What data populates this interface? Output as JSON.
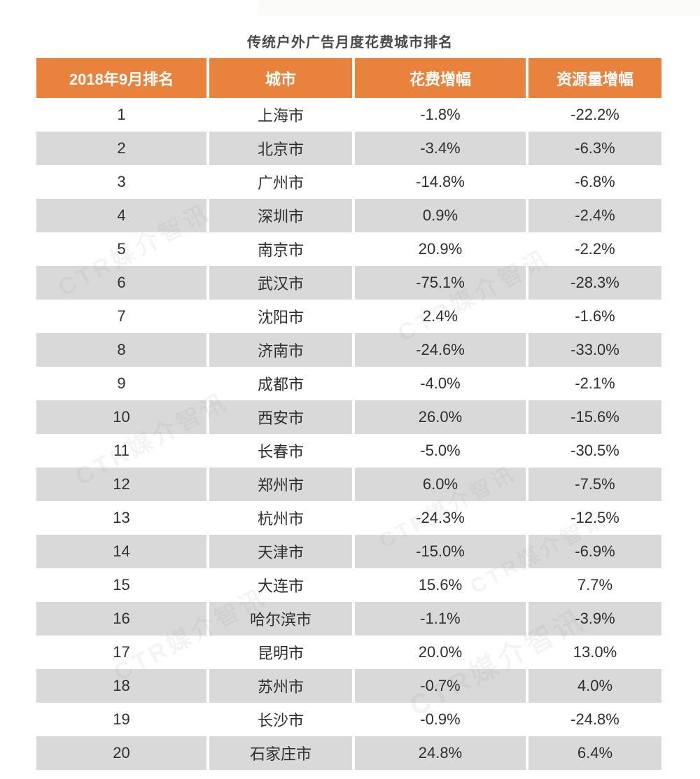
{
  "page": {
    "title": "传统户外广告月度花费城市排名"
  },
  "watermark": {
    "text": "CTR媒介智讯"
  },
  "colors": {
    "header_bg": "#E8823C",
    "header_text": "#FFFFFF",
    "alt_row_bg": "#D9D9D9",
    "row_bg": "#FFFFFF",
    "body_text": "#2F2F2F",
    "title_text": "#4A4A4A"
  },
  "table": {
    "headers": [
      "2018年9月排名",
      "城市",
      "花费增幅",
      "资源量增幅"
    ],
    "rows": [
      {
        "rank": "1",
        "city": "上海市",
        "spend_change": "-1.8%",
        "resource_change": "-22.2%"
      },
      {
        "rank": "2",
        "city": "北京市",
        "spend_change": "-3.4%",
        "resource_change": "-6.3%"
      },
      {
        "rank": "3",
        "city": "广州市",
        "spend_change": "-14.8%",
        "resource_change": "-6.8%"
      },
      {
        "rank": "4",
        "city": "深圳市",
        "spend_change": "0.9%",
        "resource_change": "-2.4%"
      },
      {
        "rank": "5",
        "city": "南京市",
        "spend_change": "20.9%",
        "resource_change": "-2.2%"
      },
      {
        "rank": "6",
        "city": "武汉市",
        "spend_change": "-75.1%",
        "resource_change": "-28.3%"
      },
      {
        "rank": "7",
        "city": "沈阳市",
        "spend_change": "2.4%",
        "resource_change": "-1.6%"
      },
      {
        "rank": "8",
        "city": "济南市",
        "spend_change": "-24.6%",
        "resource_change": "-33.0%"
      },
      {
        "rank": "9",
        "city": "成都市",
        "spend_change": "-4.0%",
        "resource_change": "-2.1%"
      },
      {
        "rank": "10",
        "city": "西安市",
        "spend_change": "26.0%",
        "resource_change": "-15.6%"
      },
      {
        "rank": "11",
        "city": "长春市",
        "spend_change": "-5.0%",
        "resource_change": "-30.5%"
      },
      {
        "rank": "12",
        "city": "郑州市",
        "spend_change": "6.0%",
        "resource_change": "-7.5%"
      },
      {
        "rank": "13",
        "city": "杭州市",
        "spend_change": "-24.3%",
        "resource_change": "-12.5%"
      },
      {
        "rank": "14",
        "city": "天津市",
        "spend_change": "-15.0%",
        "resource_change": "-6.9%"
      },
      {
        "rank": "15",
        "city": "大连市",
        "spend_change": "15.6%",
        "resource_change": "7.7%"
      },
      {
        "rank": "16",
        "city": "哈尔滨市",
        "spend_change": "-1.1%",
        "resource_change": "-3.9%"
      },
      {
        "rank": "17",
        "city": "昆明市",
        "spend_change": "20.0%",
        "resource_change": "13.0%"
      },
      {
        "rank": "18",
        "city": "苏州市",
        "spend_change": "-0.7%",
        "resource_change": "4.0%"
      },
      {
        "rank": "19",
        "city": "长沙市",
        "spend_change": "-0.9%",
        "resource_change": "-24.8%"
      },
      {
        "rank": "20",
        "city": "石家庄市",
        "spend_change": "24.8%",
        "resource_change": "6.4%"
      }
    ]
  },
  "chart_data": {
    "type": "table",
    "title": "传统户外广告月度花费城市排名",
    "columns": [
      "2018年9月排名",
      "城市",
      "花费增幅",
      "资源量增幅"
    ],
    "rows": [
      [
        "1",
        "上海市",
        "-1.8%",
        "-22.2%"
      ],
      [
        "2",
        "北京市",
        "-3.4%",
        "-6.3%"
      ],
      [
        "3",
        "广州市",
        "-14.8%",
        "-6.8%"
      ],
      [
        "4",
        "深圳市",
        "0.9%",
        "-2.4%"
      ],
      [
        "5",
        "南京市",
        "20.9%",
        "-2.2%"
      ],
      [
        "6",
        "武汉市",
        "-75.1%",
        "-28.3%"
      ],
      [
        "7",
        "沈阳市",
        "2.4%",
        "-1.6%"
      ],
      [
        "8",
        "济南市",
        "-24.6%",
        "-33.0%"
      ],
      [
        "9",
        "成都市",
        "-4.0%",
        "-2.1%"
      ],
      [
        "10",
        "西安市",
        "26.0%",
        "-15.6%"
      ],
      [
        "11",
        "长春市",
        "-5.0%",
        "-30.5%"
      ],
      [
        "12",
        "郑州市",
        "6.0%",
        "-7.5%"
      ],
      [
        "13",
        "杭州市",
        "-24.3%",
        "-12.5%"
      ],
      [
        "14",
        "天津市",
        "-15.0%",
        "-6.9%"
      ],
      [
        "15",
        "大连市",
        "15.6%",
        "7.7%"
      ],
      [
        "16",
        "哈尔滨市",
        "-1.1%",
        "-3.9%"
      ],
      [
        "17",
        "昆明市",
        "20.0%",
        "13.0%"
      ],
      [
        "18",
        "苏州市",
        "-0.7%",
        "4.0%"
      ],
      [
        "19",
        "长沙市",
        "-0.9%",
        "-24.8%"
      ],
      [
        "20",
        "石家庄市",
        "24.8%",
        "6.4%"
      ]
    ]
  }
}
